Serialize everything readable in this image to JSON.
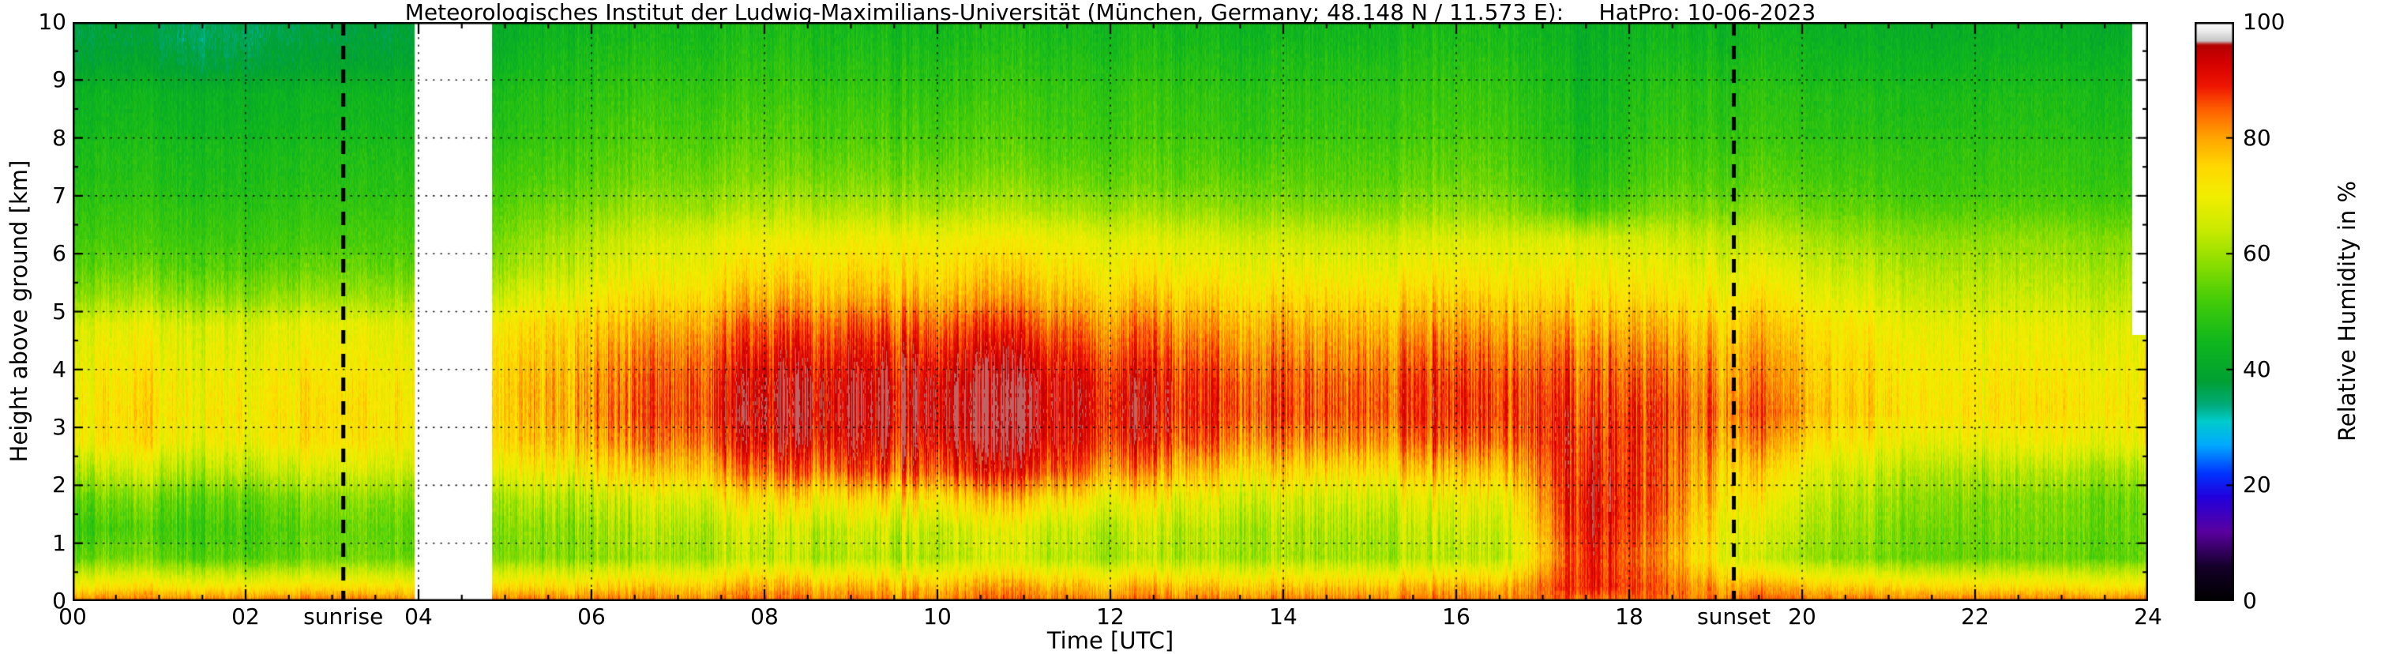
{
  "chart_data": {
    "type": "heatmap",
    "title": "Meteorologisches Institut der Ludwig-Maximilians-Universität (München, Germany; 48.148 N / 11.573 E):     HatPro: 10-06-2023",
    "xlabel": "Time [UTC]",
    "ylabel": "Height above ground [km]",
    "colorbar_label": "Relative Humidity in %",
    "instrument": "HatPro",
    "date": "10-06-2023",
    "x_range": [
      0,
      24
    ],
    "y_range": [
      0,
      10
    ],
    "grid_on": true,
    "x_ticks": [
      0,
      2,
      4,
      6,
      8,
      10,
      12,
      14,
      16,
      18,
      20,
      22,
      24
    ],
    "x_tick_labels": [
      "00",
      "02",
      "04",
      "06",
      "08",
      "10",
      "12",
      "14",
      "16",
      "18",
      "20",
      "22",
      "24"
    ],
    "y_ticks": [
      0,
      1,
      2,
      3,
      4,
      5,
      6,
      7,
      8,
      9,
      10
    ],
    "y_tick_labels": [
      "0",
      "1",
      "2",
      "3",
      "4",
      "5",
      "6",
      "7",
      "8",
      "9",
      "10"
    ],
    "colorbar_ticks": [
      0,
      20,
      40,
      60,
      80,
      100
    ],
    "colorbar_tick_labels": [
      "0",
      "20",
      "40",
      "60",
      "80",
      "100"
    ],
    "colorbar_range": [
      0,
      100
    ],
    "sunrise_label": "sunrise",
    "sunset_label": "sunset",
    "sunrise_utc": 3.13,
    "sunset_utc": 19.21,
    "data_gaps": [
      {
        "t_start": 3.95,
        "t_end": 4.85,
        "h_min": 0,
        "h_max": 10
      },
      {
        "t_start": 23.82,
        "t_end": 24.0,
        "h_min": 4.6,
        "h_max": 10
      }
    ],
    "surface_rh_percent": 84,
    "grid": {
      "time_centers_utc": [
        0.5,
        1.5,
        2.5,
        3.5,
        4.5,
        5.5,
        6.5,
        7.5,
        8.5,
        9.5,
        10.5,
        11.5,
        12.5,
        13.5,
        14.5,
        15.5,
        16.5,
        17.5,
        18.5,
        19.5,
        20.5,
        21.5,
        22.5,
        23.5
      ],
      "height_centers_km": [
        0.25,
        0.75,
        1.25,
        1.75,
        2.25,
        2.75,
        3.25,
        3.75,
        4.25,
        4.75,
        5.25,
        5.75,
        6.25,
        6.75,
        7.25,
        7.75,
        8.25,
        8.75,
        9.25,
        9.75
      ],
      "rh_percent": [
        [
          73,
          72,
          72,
          73,
          74,
          74,
          76,
          77,
          78,
          78,
          79,
          78,
          78,
          77,
          77,
          78,
          79,
          90,
          84,
          78,
          76,
          74,
          74,
          73
        ],
        [
          56,
          54,
          54,
          56,
          57,
          58,
          60,
          62,
          62,
          63,
          64,
          63,
          62,
          62,
          61,
          62,
          64,
          90,
          80,
          62,
          58,
          55,
          56,
          55
        ],
        [
          52,
          52,
          53,
          55,
          57,
          58,
          62,
          64,
          64,
          66,
          66,
          65,
          64,
          63,
          62,
          64,
          66,
          92,
          82,
          64,
          60,
          56,
          57,
          56
        ],
        [
          56,
          55,
          56,
          58,
          60,
          62,
          66,
          70,
          72,
          74,
          75,
          74,
          70,
          68,
          66,
          68,
          70,
          93,
          84,
          68,
          62,
          58,
          58,
          57
        ],
        [
          64,
          63,
          64,
          66,
          68,
          70,
          75,
          80,
          84,
          87,
          88,
          86,
          80,
          76,
          74,
          76,
          78,
          91,
          85,
          72,
          66,
          62,
          63,
          62
        ],
        [
          72,
          70,
          71,
          72,
          73,
          76,
          82,
          87,
          91,
          93,
          94,
          92,
          88,
          84,
          82,
          84,
          86,
          90,
          86,
          78,
          72,
          68,
          70,
          70
        ],
        [
          73,
          72,
          72,
          73,
          74,
          78,
          85,
          90,
          94,
          96,
          96,
          94,
          91,
          88,
          86,
          88,
          89,
          88,
          87,
          82,
          76,
          72,
          74,
          73
        ],
        [
          72,
          71,
          71,
          72,
          74,
          78,
          84,
          89,
          93,
          95,
          95,
          93,
          90,
          87,
          85,
          87,
          88,
          86,
          85,
          80,
          75,
          71,
          73,
          72
        ],
        [
          70,
          69,
          69,
          70,
          72,
          76,
          82,
          86,
          89,
          91,
          91,
          89,
          86,
          84,
          82,
          84,
          85,
          83,
          82,
          78,
          74,
          70,
          71,
          70
        ],
        [
          68,
          67,
          67,
          68,
          70,
          74,
          78,
          82,
          85,
          86,
          86,
          84,
          82,
          80,
          79,
          80,
          81,
          79,
          78,
          75,
          72,
          68,
          69,
          68
        ],
        [
          60,
          59,
          59,
          60,
          62,
          68,
          73,
          76,
          78,
          79,
          79,
          78,
          76,
          75,
          74,
          75,
          76,
          74,
          73,
          71,
          68,
          64,
          65,
          64
        ],
        [
          55,
          54,
          54,
          55,
          57,
          63,
          68,
          71,
          73,
          74,
          74,
          73,
          71,
          70,
          69,
          70,
          71,
          70,
          69,
          67,
          64,
          61,
          62,
          61
        ],
        [
          52,
          51,
          51,
          52,
          54,
          60,
          65,
          68,
          69,
          70,
          70,
          69,
          67,
          66,
          65,
          66,
          67,
          66,
          65,
          63,
          60,
          58,
          59,
          58
        ],
        [
          50,
          49,
          49,
          50,
          52,
          56,
          60,
          61,
          62,
          62,
          62,
          61,
          60,
          59,
          58,
          59,
          60,
          52,
          58,
          57,
          55,
          53,
          54,
          53
        ],
        [
          48,
          47,
          47,
          48,
          50,
          53,
          56,
          57,
          57,
          57,
          57,
          56,
          55,
          55,
          54,
          55,
          56,
          48,
          54,
          53,
          52,
          50,
          51,
          50
        ],
        [
          47,
          46,
          46,
          47,
          48,
          51,
          54,
          54,
          54,
          54,
          54,
          53,
          53,
          52,
          52,
          53,
          54,
          46,
          52,
          51,
          50,
          49,
          50,
          49
        ],
        [
          45,
          44,
          44,
          45,
          46,
          49,
          52,
          52,
          52,
          52,
          52,
          51,
          51,
          50,
          50,
          51,
          52,
          45,
          50,
          49,
          48,
          47,
          48,
          47
        ],
        [
          44,
          43,
          43,
          44,
          45,
          48,
          50,
          50,
          50,
          50,
          50,
          50,
          50,
          49,
          49,
          50,
          51,
          44,
          49,
          48,
          47,
          46,
          47,
          46
        ],
        [
          40,
          38,
          39,
          40,
          42,
          46,
          48,
          48,
          48,
          48,
          48,
          48,
          48,
          47,
          47,
          48,
          49,
          43,
          47,
          46,
          45,
          44,
          45,
          44
        ],
        [
          38,
          36,
          37,
          38,
          40,
          44,
          46,
          46,
          46,
          46,
          46,
          46,
          46,
          45,
          45,
          46,
          47,
          42,
          45,
          44,
          43,
          42,
          43,
          42
        ]
      ]
    },
    "colormap_stops": [
      [
        0,
        "#000000"
      ],
      [
        6,
        "#15002a"
      ],
      [
        12,
        "#5a00a0"
      ],
      [
        18,
        "#2200dd"
      ],
      [
        22,
        "#0033ff"
      ],
      [
        27,
        "#00aaff"
      ],
      [
        31,
        "#00cccc"
      ],
      [
        34,
        "#00aa77"
      ],
      [
        38,
        "#00a033"
      ],
      [
        45,
        "#11b81c"
      ],
      [
        52,
        "#44cc08"
      ],
      [
        58,
        "#88dd00"
      ],
      [
        64,
        "#c8ea00"
      ],
      [
        70,
        "#f2ee00"
      ],
      [
        75,
        "#ffd800"
      ],
      [
        80,
        "#ffa500"
      ],
      [
        85,
        "#ff5e00"
      ],
      [
        89,
        "#ee1500"
      ],
      [
        93,
        "#d40000"
      ],
      [
        96,
        "#b40000"
      ],
      [
        96.8,
        "#c8c8c8"
      ],
      [
        98.6,
        "#eeeeee"
      ],
      [
        100,
        "#ffffff"
      ]
    ],
    "line_color": "#000000",
    "background_color": "#ffffff"
  }
}
